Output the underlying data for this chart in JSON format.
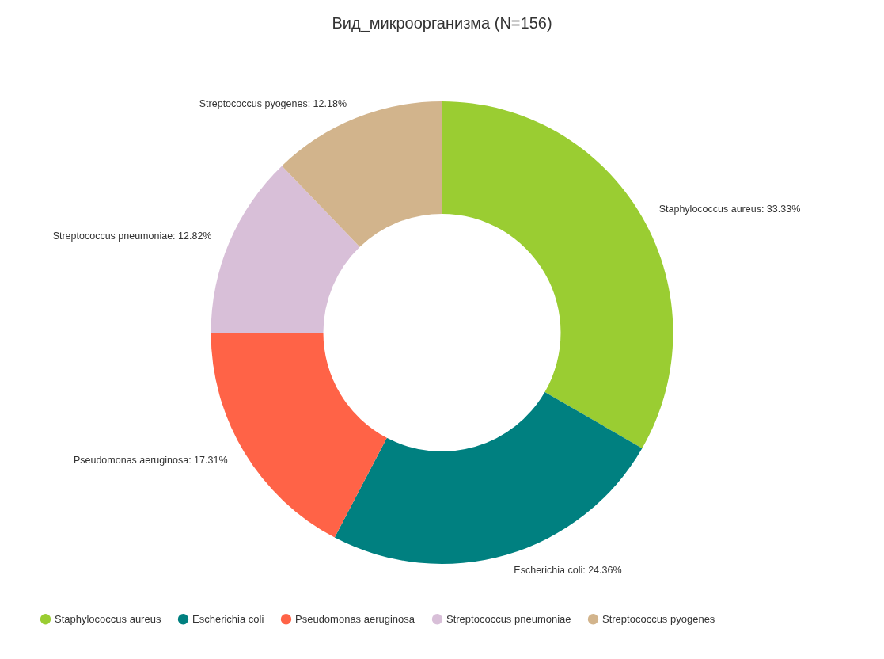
{
  "chart_data": {
    "type": "donut",
    "title": "Вид_микроорганизма (N=156)",
    "categories": [
      "Staphylococcus aureus",
      "Escherichia coli",
      "Pseudomonas aeruginosa",
      "Streptococcus pneumoniae",
      "Streptococcus pyogenes"
    ],
    "values": [
      33.33,
      24.36,
      17.31,
      12.82,
      12.18
    ],
    "colors": [
      "#9acd32",
      "#008080",
      "#ff6347",
      "#d8bfd8",
      "#d2b48c"
    ],
    "value_labels": [
      "Staphylococcus aureus: 33.33%",
      "Escherichia coli: 24.36%",
      "Pseudomonas aeruginosa: 17.31%",
      "Streptococcus pneumoniae: 12.82%",
      "Streptococcus pyogenes: 12.18%"
    ],
    "legend": "bottom"
  }
}
